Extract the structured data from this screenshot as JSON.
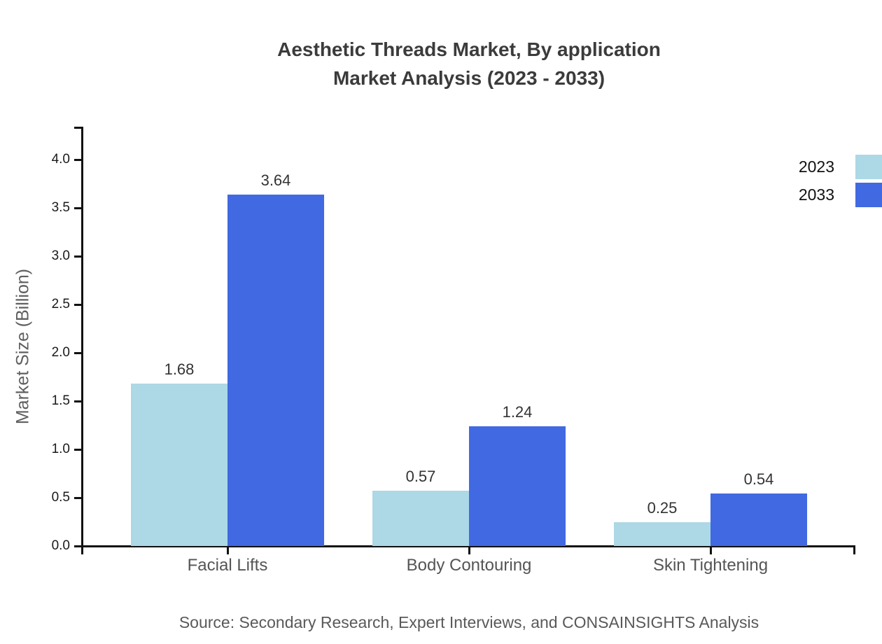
{
  "title": {
    "line1": "Aesthetic Threads Market, By application",
    "line2": "Market Analysis (2023 - 2033)"
  },
  "source": "Source: Secondary Research, Expert Interviews, and CONSAINSIGHTS Analysis",
  "colors": {
    "series_2023": "#ADD8E6",
    "series_2033": "#4169E1",
    "axis": "#111111",
    "title_text": "#3b3b3b",
    "muted_text": "#595959"
  },
  "chart_data": {
    "type": "bar",
    "categories": [
      "Facial Lifts",
      "Body Contouring",
      "Skin Tightening"
    ],
    "series": [
      {
        "name": "2023",
        "color": "#ADD8E6",
        "values": [
          1.68,
          0.57,
          0.25
        ]
      },
      {
        "name": "2033",
        "color": "#4169E1",
        "values": [
          3.64,
          1.24,
          0.54
        ]
      }
    ],
    "title": "Aesthetic Threads Market, By application Market Analysis (2023 - 2033)",
    "xlabel": "",
    "ylabel": "Market Size (Billion)",
    "ylim": [
      0,
      4.35
    ],
    "yticks": [
      0.0,
      0.5,
      1.0,
      1.5,
      2.0,
      2.5,
      3.0,
      3.5,
      4.0
    ],
    "grid": false,
    "value_labels": true,
    "legend_position": "top-right"
  }
}
